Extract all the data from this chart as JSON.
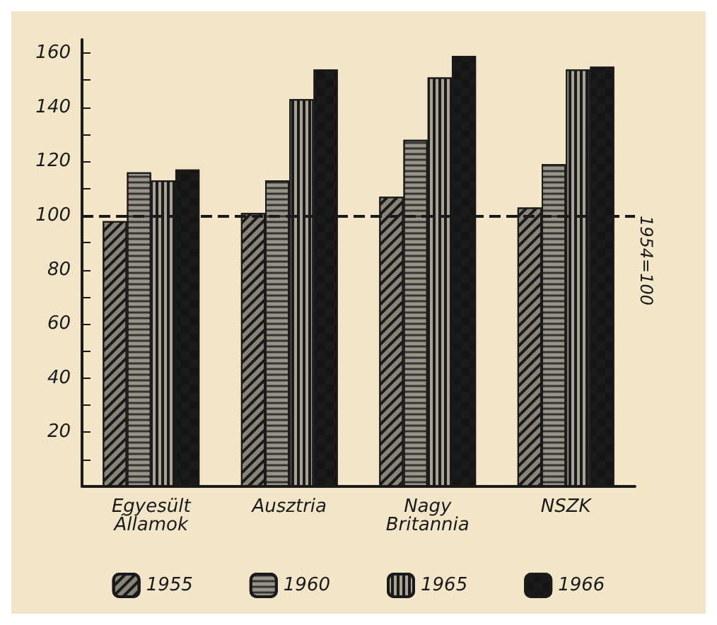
{
  "chart_data": {
    "type": "bar",
    "categories": [
      "Egyesült\nÁllamok",
      "Ausztria",
      "Nagy\nBritannia",
      "NSZK"
    ],
    "series": [
      {
        "name": "1955",
        "color": "#8a8478",
        "values": [
          98,
          101,
          107,
          103
        ]
      },
      {
        "name": "1960",
        "color": "#9a9488",
        "values": [
          116,
          113,
          128,
          119
        ]
      },
      {
        "name": "1965",
        "color": "#aaa498",
        "values": [
          113,
          143,
          151,
          154
        ]
      },
      {
        "name": "1966",
        "color": "#1a1a1a",
        "values": [
          117,
          154,
          159,
          155
        ]
      }
    ],
    "ylim": [
      0,
      165
    ],
    "yticks": [
      {
        "value": 10,
        "label": null
      },
      20,
      {
        "value": 30,
        "label": null
      },
      40,
      {
        "value": 50,
        "label": null
      },
      60,
      {
        "value": 70,
        "label": null
      },
      80,
      {
        "value": 90,
        "label": null
      },
      100,
      {
        "value": 110,
        "label": null
      },
      120,
      {
        "value": 130,
        "label": null
      },
      140,
      {
        "value": 150,
        "label": null
      },
      160
    ],
    "ref_lines": [
      {
        "axis": "y",
        "value": 100,
        "label": "1954=100",
        "line_style": "dashed",
        "color": "#1a1a1a"
      }
    ],
    "grid": false,
    "legend": "bottom"
  }
}
